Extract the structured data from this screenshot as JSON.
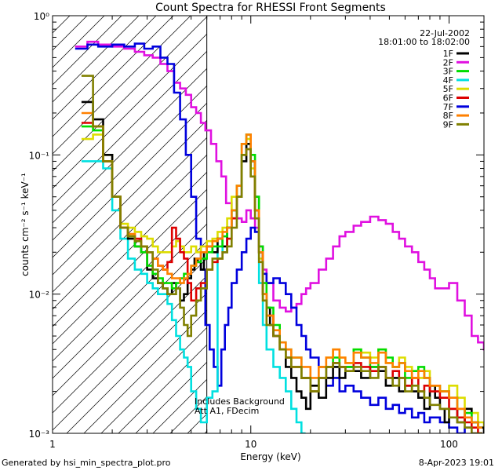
{
  "chart_data": {
    "type": "line",
    "title": "Count Spectra for RHESSI Front Segments",
    "xlabel": "Energy (keV)",
    "ylabel": "counts cm⁻² s⁻¹ keV⁻¹",
    "xscale": "log",
    "yscale": "log",
    "xlim": [
      1,
      150
    ],
    "ylim": [
      0.001,
      1
    ],
    "x_ticks": [
      1,
      10,
      100
    ],
    "x_tick_labels": [
      "1",
      "10",
      "100"
    ],
    "y_ticks": [
      0.001,
      0.01,
      0.1,
      1
    ],
    "y_tick_labels": [
      "10⁻³",
      "10⁻²",
      "10⁻¹",
      "10⁰"
    ],
    "date_label": "22-Jul-2002",
    "time_range_label": "18:01:00 to 18:02:00",
    "annotation_lines": [
      "Includes Background",
      "Att A1, FDecim"
    ],
    "attenuator_cutoff_kev": 6,
    "legend_position": "top-right",
    "series": [
      {
        "name": "1F",
        "color": "#000000",
        "x": [
          1.4,
          1.6,
          1.8,
          2.0,
          2.2,
          2.4,
          2.6,
          2.8,
          3.0,
          3.2,
          3.4,
          3.6,
          3.8,
          4.0,
          4.2,
          4.4,
          4.6,
          4.8,
          5.0,
          5.2,
          5.4,
          5.6,
          5.8,
          6.0,
          6.4,
          6.8,
          7.2,
          7.6,
          8.0,
          8.5,
          9.0,
          9.5,
          10.0,
          10.5,
          11.0,
          11.5,
          12.0,
          12.5,
          13,
          14,
          15,
          16,
          17,
          18,
          19,
          20,
          22,
          24,
          26,
          28,
          30,
          33,
          36,
          40,
          44,
          48,
          52,
          56,
          60,
          65,
          70,
          75,
          80,
          85,
          90,
          95,
          100,
          110,
          120,
          130,
          140,
          150
        ],
        "y": [
          0.24,
          0.18,
          0.1,
          0.05,
          0.03,
          0.025,
          0.022,
          0.02,
          0.015,
          0.013,
          0.012,
          0.011,
          0.01,
          0.012,
          0.011,
          0.009,
          0.01,
          0.013,
          0.015,
          0.018,
          0.017,
          0.015,
          0.02,
          0.022,
          0.02,
          0.025,
          0.022,
          0.03,
          0.035,
          0.05,
          0.09,
          0.12,
          0.09,
          0.05,
          0.02,
          0.01,
          0.008,
          0.006,
          0.005,
          0.004,
          0.003,
          0.0025,
          0.002,
          0.0018,
          0.0015,
          0.0022,
          0.0018,
          0.0025,
          0.003,
          0.0025,
          0.003,
          0.0028,
          0.0025,
          0.003,
          0.0028,
          0.0022,
          0.0025,
          0.002,
          0.0022,
          0.002,
          0.0018,
          0.0015,
          0.0022,
          0.0018,
          0.0015,
          0.0012,
          0.0015,
          0.0012,
          0.0015,
          0.0012,
          0.0011,
          0.001
        ]
      },
      {
        "name": "2F",
        "color": "#e010e0",
        "x": [
          1.3,
          1.5,
          1.7,
          2.0,
          2.3,
          2.6,
          2.9,
          3.2,
          3.5,
          3.8,
          4.1,
          4.4,
          4.7,
          5.0,
          5.3,
          5.6,
          5.9,
          6.3,
          6.7,
          7.1,
          7.5,
          8.0,
          8.5,
          9.0,
          9.5,
          10.0,
          10.5,
          11.0,
          11.5,
          12,
          13,
          14,
          15,
          16,
          17,
          18,
          19,
          20,
          22,
          24,
          26,
          28,
          30,
          33,
          36,
          40,
          44,
          48,
          52,
          56,
          60,
          65,
          70,
          75,
          80,
          85,
          90,
          100,
          110,
          120,
          130,
          140,
          150
        ],
        "y": [
          0.6,
          0.65,
          0.62,
          0.6,
          0.58,
          0.55,
          0.52,
          0.5,
          0.45,
          0.4,
          0.33,
          0.3,
          0.27,
          0.22,
          0.2,
          0.17,
          0.15,
          0.12,
          0.09,
          0.07,
          0.045,
          0.04,
          0.035,
          0.033,
          0.04,
          0.035,
          0.03,
          0.022,
          0.015,
          0.012,
          0.009,
          0.008,
          0.0075,
          0.008,
          0.0085,
          0.01,
          0.011,
          0.012,
          0.015,
          0.018,
          0.022,
          0.026,
          0.028,
          0.031,
          0.033,
          0.036,
          0.034,
          0.032,
          0.028,
          0.025,
          0.022,
          0.02,
          0.017,
          0.015,
          0.013,
          0.011,
          0.011,
          0.012,
          0.009,
          0.007,
          0.005,
          0.0045,
          0.004
        ]
      },
      {
        "name": "3F",
        "color": "#00dd00",
        "x": [
          1.4,
          1.6,
          1.8,
          2.0,
          2.2,
          2.4,
          2.6,
          2.8,
          3.0,
          3.2,
          3.4,
          3.6,
          3.8,
          4.0,
          4.2,
          4.4,
          4.6,
          4.8,
          5.0,
          5.3,
          5.6,
          6.0,
          6.4,
          6.8,
          7.2,
          7.6,
          8.0,
          8.5,
          9.0,
          9.5,
          10.0,
          10.5,
          11.0,
          11.5,
          12,
          13,
          14,
          15,
          16,
          18,
          20,
          22,
          24,
          26,
          28,
          30,
          33,
          36,
          40,
          44,
          48,
          52,
          56,
          60,
          65,
          70,
          75,
          80,
          90,
          100,
          110,
          120,
          130,
          140
        ],
        "y": [
          0.16,
          0.15,
          0.09,
          0.05,
          0.03,
          0.026,
          0.022,
          0.02,
          0.016,
          0.014,
          0.013,
          0.012,
          0.012,
          0.011,
          0.012,
          0.013,
          0.014,
          0.014,
          0.016,
          0.017,
          0.018,
          0.02,
          0.022,
          0.022,
          0.026,
          0.03,
          0.04,
          0.06,
          0.12,
          0.14,
          0.1,
          0.05,
          0.022,
          0.012,
          0.008,
          0.006,
          0.0045,
          0.004,
          0.0035,
          0.0025,
          0.002,
          0.0025,
          0.003,
          0.0035,
          0.003,
          0.003,
          0.004,
          0.0035,
          0.003,
          0.004,
          0.0035,
          0.003,
          0.0032,
          0.0025,
          0.0028,
          0.003,
          0.0025,
          0.0022,
          0.002,
          0.0018,
          0.0015,
          0.0014,
          0.0012,
          0.0011
        ]
      },
      {
        "name": "4F",
        "color": "#00e0e0",
        "x": [
          1.4,
          1.6,
          1.8,
          2.0,
          2.2,
          2.4,
          2.6,
          2.8,
          3.0,
          3.2,
          3.4,
          3.6,
          3.8,
          4.0,
          4.2,
          4.4,
          4.6,
          4.8,
          5.0,
          5.3,
          5.6,
          6.0,
          6.4,
          6.8,
          7.2,
          7.6,
          8.0,
          8.5,
          9.0,
          9.5,
          10.0,
          10.5,
          11.0,
          11.5,
          12,
          13,
          14,
          15,
          16,
          17,
          18
        ],
        "y": [
          0.09,
          0.09,
          0.08,
          0.04,
          0.025,
          0.018,
          0.015,
          0.014,
          0.012,
          0.011,
          0.01,
          0.01,
          0.0085,
          0.0065,
          0.005,
          0.004,
          0.0035,
          0.003,
          0.002,
          0.0015,
          0.0012,
          0.0018,
          0.002,
          0.025,
          0.02,
          0.03,
          0.04,
          0.05,
          0.1,
          0.12,
          0.09,
          0.04,
          0.012,
          0.006,
          0.004,
          0.003,
          0.0025,
          0.002,
          0.0015,
          0.0012,
          0.001
        ]
      },
      {
        "name": "5F",
        "color": "#dddd00",
        "x": [
          1.4,
          1.6,
          1.8,
          2.0,
          2.2,
          2.4,
          2.6,
          2.8,
          3.0,
          3.2,
          3.4,
          3.6,
          3.8,
          4.0,
          4.2,
          4.4,
          4.6,
          4.8,
          5.0,
          5.3,
          5.6,
          6.0,
          6.4,
          6.8,
          7.2,
          7.6,
          8.0,
          8.5,
          9.0,
          9.5,
          10.0,
          10.5,
          11.0,
          11.5,
          12,
          13,
          14,
          15,
          16,
          18,
          20,
          22,
          24,
          26,
          28,
          30,
          33,
          36,
          40,
          44,
          48,
          52,
          56,
          60,
          65,
          70,
          75,
          80,
          90,
          100,
          110,
          120,
          130,
          140,
          150
        ],
        "y": [
          0.13,
          0.14,
          0.1,
          0.05,
          0.032,
          0.03,
          0.028,
          0.026,
          0.025,
          0.022,
          0.02,
          0.02,
          0.02,
          0.022,
          0.024,
          0.022,
          0.02,
          0.02,
          0.022,
          0.02,
          0.022,
          0.024,
          0.025,
          0.028,
          0.03,
          0.035,
          0.05,
          0.06,
          0.12,
          0.13,
          0.08,
          0.04,
          0.018,
          0.009,
          0.006,
          0.005,
          0.004,
          0.0035,
          0.003,
          0.0025,
          0.0022,
          0.003,
          0.0035,
          0.004,
          0.0035,
          0.0032,
          0.004,
          0.0038,
          0.0035,
          0.004,
          0.0032,
          0.003,
          0.0035,
          0.003,
          0.0028,
          0.0025,
          0.0028,
          0.0022,
          0.002,
          0.0022,
          0.0018,
          0.0015,
          0.0014,
          0.0012,
          0.0011
        ]
      },
      {
        "name": "6F",
        "color": "#dd0000",
        "x": [
          1.4,
          1.6,
          1.8,
          2.0,
          2.2,
          2.4,
          2.6,
          2.8,
          3.0,
          3.2,
          3.4,
          3.6,
          3.8,
          4.0,
          4.2,
          4.4,
          4.6,
          4.8,
          5.0,
          5.3,
          5.6,
          6.0,
          6.4,
          6.8,
          7.2,
          7.6,
          8.0,
          8.5,
          9.0,
          9.5,
          10.0,
          10.5,
          11.0,
          11.5,
          12,
          13,
          14,
          15,
          16,
          18,
          20,
          22,
          24,
          26,
          28,
          30,
          33,
          36,
          40,
          44,
          48,
          52,
          56,
          60,
          65,
          70,
          75,
          80,
          90,
          100,
          110,
          120,
          130,
          140
        ],
        "y": [
          0.17,
          0.16,
          0.09,
          0.05,
          0.03,
          0.027,
          0.025,
          0.022,
          0.02,
          0.018,
          0.016,
          0.015,
          0.017,
          0.03,
          0.025,
          0.02,
          0.018,
          0.012,
          0.009,
          0.011,
          0.012,
          0.015,
          0.017,
          0.018,
          0.02,
          0.025,
          0.035,
          0.05,
          0.1,
          0.11,
          0.07,
          0.04,
          0.02,
          0.01,
          0.007,
          0.005,
          0.004,
          0.0035,
          0.003,
          0.0025,
          0.002,
          0.0025,
          0.003,
          0.0032,
          0.003,
          0.0028,
          0.0032,
          0.003,
          0.0028,
          0.003,
          0.0025,
          0.0028,
          0.0025,
          0.0022,
          0.0025,
          0.002,
          0.0022,
          0.002,
          0.0018,
          0.0015,
          0.0013,
          0.0012,
          0.0011,
          0.001
        ]
      },
      {
        "name": "7F",
        "color": "#0000dd",
        "x": [
          1.3,
          1.5,
          1.7,
          2.0,
          2.3,
          2.6,
          2.9,
          3.2,
          3.5,
          3.8,
          4.1,
          4.4,
          4.7,
          5.0,
          5.3,
          5.6,
          5.9,
          6.2,
          6.5,
          6.8,
          7.1,
          7.4,
          7.7,
          8.0,
          8.5,
          9.0,
          9.5,
          10.0,
          10.5,
          11.0,
          11.5,
          12,
          13,
          14,
          15,
          16,
          17,
          18,
          19,
          20,
          22,
          24,
          26,
          28,
          30,
          33,
          36,
          40,
          44,
          48,
          52,
          56,
          60,
          65,
          70,
          75,
          80,
          90,
          100,
          110,
          120,
          130,
          140
        ],
        "y": [
          0.58,
          0.62,
          0.6,
          0.62,
          0.6,
          0.63,
          0.58,
          0.6,
          0.5,
          0.45,
          0.28,
          0.18,
          0.1,
          0.05,
          0.025,
          0.015,
          0.006,
          0.004,
          0.003,
          0.0022,
          0.004,
          0.006,
          0.008,
          0.012,
          0.015,
          0.02,
          0.025,
          0.03,
          0.028,
          0.02,
          0.014,
          0.012,
          0.013,
          0.012,
          0.01,
          0.008,
          0.006,
          0.005,
          0.004,
          0.0035,
          0.003,
          0.0022,
          0.0025,
          0.002,
          0.0022,
          0.002,
          0.0018,
          0.0016,
          0.0018,
          0.0015,
          0.0016,
          0.0014,
          0.0015,
          0.0013,
          0.0014,
          0.0012,
          0.0013,
          0.0012,
          0.0011,
          0.001,
          0.0011,
          0.001,
          0.001
        ]
      },
      {
        "name": "8F",
        "color": "#ff8000",
        "x": [
          1.4,
          1.6,
          1.8,
          2.0,
          2.2,
          2.4,
          2.6,
          2.8,
          3.0,
          3.2,
          3.4,
          3.6,
          3.8,
          4.0,
          4.2,
          4.4,
          4.6,
          4.8,
          5.0,
          5.3,
          5.6,
          6.0,
          6.4,
          6.8,
          7.2,
          7.6,
          8.0,
          8.5,
          9.0,
          9.5,
          10.0,
          10.5,
          11.0,
          11.5,
          12,
          13,
          14,
          15,
          16,
          18,
          20,
          22,
          24,
          26,
          28,
          30,
          33,
          36,
          40,
          44,
          48,
          52,
          56,
          60,
          65,
          70,
          75,
          80,
          90,
          100,
          110,
          120,
          130,
          140
        ],
        "y": [
          0.2,
          0.16,
          0.09,
          0.05,
          0.03,
          0.027,
          0.024,
          0.022,
          0.02,
          0.018,
          0.016,
          0.015,
          0.014,
          0.013,
          0.013,
          0.012,
          0.013,
          0.014,
          0.016,
          0.018,
          0.02,
          0.022,
          0.024,
          0.025,
          0.028,
          0.03,
          0.04,
          0.06,
          0.12,
          0.14,
          0.09,
          0.04,
          0.02,
          0.01,
          0.007,
          0.0055,
          0.0045,
          0.004,
          0.0035,
          0.003,
          0.0025,
          0.003,
          0.0035,
          0.004,
          0.0035,
          0.0032,
          0.0038,
          0.0035,
          0.0032,
          0.0038,
          0.0032,
          0.003,
          0.0032,
          0.0028,
          0.0025,
          0.0028,
          0.0025,
          0.0022,
          0.002,
          0.0018,
          0.0015,
          0.0013,
          0.0012,
          0.0011
        ]
      },
      {
        "name": "9F",
        "color": "#808000",
        "x": [
          1.4,
          1.6,
          1.8,
          2.0,
          2.2,
          2.4,
          2.6,
          2.8,
          3.0,
          3.2,
          3.4,
          3.6,
          3.8,
          4.0,
          4.2,
          4.4,
          4.6,
          4.8,
          5.0,
          5.3,
          5.6,
          6.0,
          6.4,
          6.8,
          7.2,
          7.6,
          8.0,
          8.5,
          9.0,
          9.5,
          10.0,
          10.5,
          11.0,
          11.5,
          12,
          13,
          14,
          15,
          16,
          18,
          20,
          22,
          24,
          26,
          28,
          30,
          33,
          36,
          40,
          44,
          48,
          52,
          56,
          60,
          65,
          70,
          75,
          80,
          90,
          100,
          110,
          120,
          130,
          140
        ],
        "y": [
          0.37,
          0.16,
          0.09,
          0.05,
          0.03,
          0.026,
          0.024,
          0.022,
          0.02,
          0.015,
          0.012,
          0.011,
          0.01,
          0.01,
          0.011,
          0.008,
          0.006,
          0.005,
          0.007,
          0.009,
          0.011,
          0.015,
          0.018,
          0.018,
          0.02,
          0.022,
          0.03,
          0.05,
          0.1,
          0.11,
          0.07,
          0.035,
          0.017,
          0.009,
          0.006,
          0.005,
          0.004,
          0.0035,
          0.003,
          0.0025,
          0.002,
          0.0025,
          0.003,
          0.0032,
          0.003,
          0.0028,
          0.003,
          0.0028,
          0.0025,
          0.003,
          0.0025,
          0.0022,
          0.0025,
          0.002,
          0.0022,
          0.002,
          0.0018,
          0.0016,
          0.0015,
          0.0013,
          0.0012,
          0.0011,
          0.001,
          0.001
        ]
      }
    ]
  },
  "footer": {
    "left": "Generated by hsi_min_spectra_plot.pro",
    "right": "8-Apr-2023 19:01"
  }
}
